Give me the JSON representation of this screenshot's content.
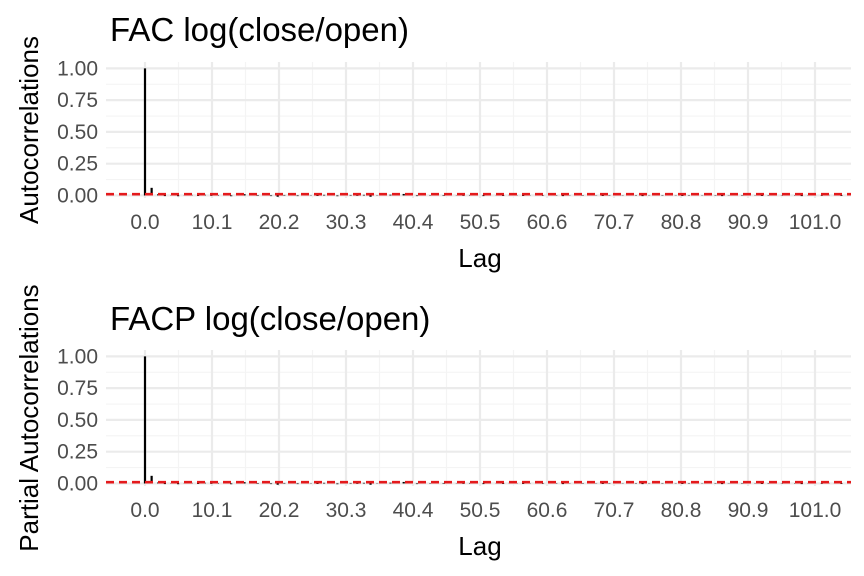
{
  "chart_data": [
    {
      "type": "bar",
      "title": "FAC log(close/open)",
      "xlabel": "Lag",
      "ylabel": "Autocorrelations",
      "xlim": [
        0,
        106
      ],
      "ylim": [
        -0.02,
        1.05
      ],
      "x_ticks": [
        "0.0",
        "10.1",
        "20.2",
        "30.3",
        "40.4",
        "50.5",
        "60.6",
        "70.7",
        "80.8",
        "90.9",
        "101.0"
      ],
      "y_ticks": [
        "0.00",
        "0.25",
        "0.50",
        "0.75",
        "1.00"
      ],
      "reference_line": 0.01,
      "x": [
        0,
        1,
        2,
        3,
        4,
        5,
        6,
        7,
        8,
        9,
        10,
        11,
        12,
        13,
        14,
        15,
        16,
        17,
        18,
        19,
        20,
        21,
        22,
        23,
        24,
        25,
        26,
        27,
        28,
        29,
        30,
        31,
        32,
        33,
        34,
        35,
        36,
        37,
        38,
        39,
        40,
        41,
        42,
        43,
        44,
        45,
        46,
        47,
        48,
        49,
        50,
        51,
        52,
        53,
        54,
        55,
        56,
        57,
        58,
        59,
        60,
        61,
        62,
        63,
        64,
        65,
        66,
        67,
        68,
        69,
        70,
        71,
        72,
        73,
        74,
        75,
        76,
        77,
        78,
        79,
        80,
        81,
        82,
        83,
        84,
        85,
        86,
        87,
        88,
        89,
        90,
        91,
        92,
        93,
        94,
        95,
        96,
        97,
        98,
        99,
        100,
        101,
        102,
        103,
        104,
        105,
        106
      ],
      "values": [
        1.0,
        0.06,
        0.01,
        -0.005,
        0.004,
        -0.006,
        0.003,
        0.005,
        -0.004,
        0.006,
        -0.003,
        0.004,
        0.002,
        -0.006,
        0.005,
        0.01,
        0.003,
        -0.004,
        0.006,
        -0.005,
        -0.01,
        0.004,
        0.003,
        -0.005,
        0.006,
        0.002,
        -0.004,
        0.005,
        0.004,
        -0.006,
        0.003,
        0.004,
        -0.003,
        0.005,
        -0.01,
        0.002,
        0.004,
        0.006,
        0.01,
        0.012,
        0.004,
        -0.005,
        0.006,
        0.003,
        0.003,
        -0.004,
        0.005,
        0.002,
        -0.003,
        0.004,
        0.003,
        -0.005,
        0.006,
        0.002,
        -0.004,
        0.005,
        0.003,
        -0.004,
        0.002,
        0.005,
        -0.003,
        0.004,
        0.003,
        -0.005,
        0.002,
        0.004,
        -0.003,
        0.005,
        0.002,
        -0.004,
        0.003,
        0.005,
        -0.002,
        0.004,
        0.003,
        -0.005,
        0.002,
        0.004,
        -0.003,
        0.006,
        0.002,
        -0.004,
        0.003,
        0.005,
        -0.002,
        0.004,
        0.003,
        -0.005,
        0.002,
        0.004,
        -0.003,
        0.005,
        0.002,
        -0.004,
        0.003,
        0.006,
        -0.002,
        0.004,
        0.003,
        -0.005,
        0.002,
        0.004,
        -0.003,
        0.005,
        0.002,
        -0.004,
        0.003
      ]
    },
    {
      "type": "bar",
      "title": "FACP log(close/open)",
      "xlabel": "Lag",
      "ylabel": "Partial Autocorrelations",
      "xlim": [
        0,
        106
      ],
      "ylim": [
        -0.02,
        1.05
      ],
      "x_ticks": [
        "0.0",
        "10.1",
        "20.2",
        "30.3",
        "40.4",
        "50.5",
        "60.6",
        "70.7",
        "80.8",
        "90.9",
        "101.0"
      ],
      "y_ticks": [
        "0.00",
        "0.25",
        "0.50",
        "0.75",
        "1.00"
      ],
      "reference_line": 0.01,
      "x": [
        0,
        1,
        2,
        3,
        4,
        5,
        6,
        7,
        8,
        9,
        10,
        11,
        12,
        13,
        14,
        15,
        16,
        17,
        18,
        19,
        20,
        21,
        22,
        23,
        24,
        25,
        26,
        27,
        28,
        29,
        30,
        31,
        32,
        33,
        34,
        35,
        36,
        37,
        38,
        39,
        40,
        41,
        42,
        43,
        44,
        45,
        46,
        47,
        48,
        49,
        50,
        51,
        52,
        53,
        54,
        55,
        56,
        57,
        58,
        59,
        60,
        61,
        62,
        63,
        64,
        65,
        66,
        67,
        68,
        69,
        70,
        71,
        72,
        73,
        74,
        75,
        76,
        77,
        78,
        79,
        80,
        81,
        82,
        83,
        84,
        85,
        86,
        87,
        88,
        89,
        90,
        91,
        92,
        93,
        94,
        95,
        96,
        97,
        98,
        99,
        100,
        101,
        102,
        103,
        104,
        105,
        106
      ],
      "values": [
        1.0,
        0.06,
        0.008,
        -0.005,
        0.004,
        -0.006,
        0.003,
        0.005,
        -0.004,
        0.006,
        -0.003,
        0.004,
        0.002,
        -0.006,
        0.005,
        0.01,
        0.003,
        -0.004,
        0.006,
        -0.005,
        -0.01,
        0.004,
        0.003,
        -0.005,
        0.006,
        0.002,
        -0.004,
        0.005,
        0.004,
        -0.006,
        0.003,
        0.004,
        -0.003,
        0.005,
        -0.01,
        0.002,
        0.004,
        0.006,
        0.01,
        0.012,
        0.004,
        -0.005,
        0.006,
        0.003,
        0.003,
        -0.004,
        0.005,
        0.002,
        -0.003,
        0.004,
        0.003,
        -0.005,
        0.006,
        0.002,
        -0.004,
        0.005,
        0.003,
        -0.004,
        0.002,
        0.005,
        -0.003,
        0.004,
        0.003,
        -0.005,
        0.002,
        0.004,
        -0.003,
        0.005,
        0.002,
        -0.004,
        0.003,
        0.005,
        -0.002,
        0.004,
        0.003,
        -0.005,
        0.002,
        0.004,
        -0.003,
        0.006,
        0.002,
        -0.004,
        0.003,
        0.005,
        -0.002,
        0.004,
        0.003,
        -0.005,
        0.002,
        0.004,
        -0.003,
        0.005,
        0.002,
        -0.004,
        0.003,
        0.006,
        -0.002,
        0.004,
        0.003,
        -0.005,
        0.002,
        0.004,
        -0.003,
        0.005,
        0.002,
        -0.004,
        0.003
      ]
    }
  ],
  "colors": {
    "bar": "#000000",
    "reference_line": "#e41a1c",
    "grid": "#ebebeb",
    "tick_text": "#4d4d4d"
  }
}
